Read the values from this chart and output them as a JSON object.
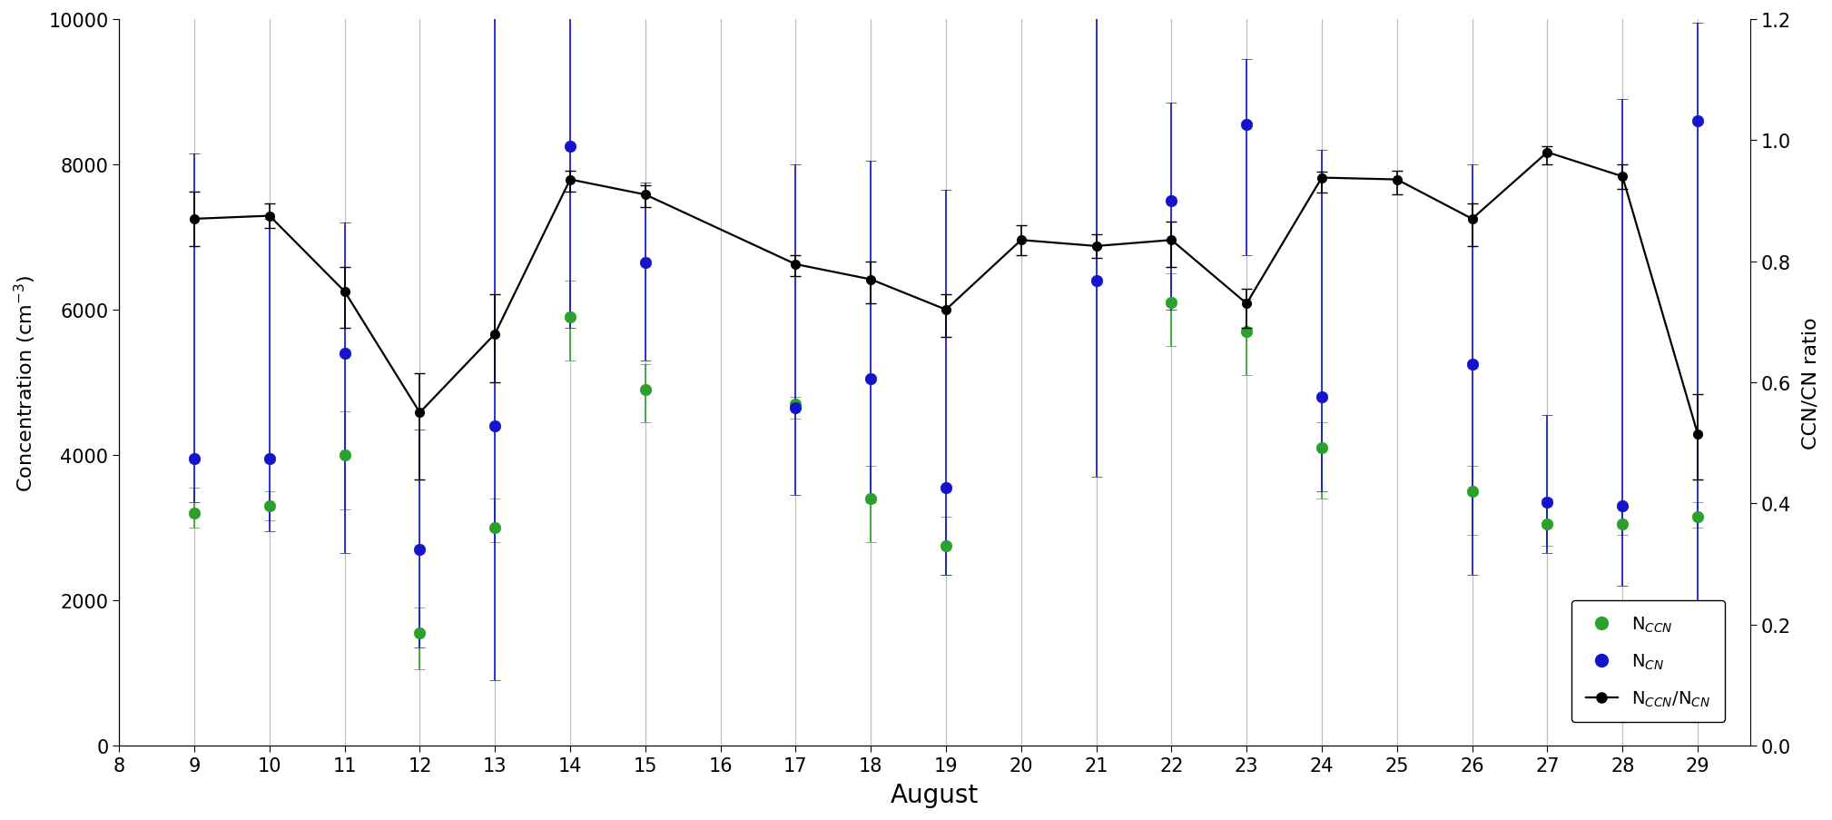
{
  "days": [
    9,
    10,
    11,
    12,
    13,
    14,
    15,
    16,
    17,
    18,
    19,
    20,
    21,
    22,
    23,
    24,
    25,
    26,
    27,
    28,
    29
  ],
  "nccn_mean": [
    3200,
    3300,
    4000,
    1550,
    3000,
    5900,
    4900,
    null,
    4700,
    3400,
    2750,
    null,
    null,
    6100,
    5700,
    4100,
    null,
    3500,
    3050,
    3050,
    3150
  ],
  "nccn_err_low": [
    200,
    200,
    750,
    500,
    200,
    600,
    450,
    null,
    200,
    600,
    400,
    null,
    null,
    600,
    600,
    700,
    null,
    600,
    300,
    150,
    150
  ],
  "nccn_err_high": [
    350,
    200,
    600,
    350,
    400,
    500,
    350,
    null,
    100,
    450,
    400,
    null,
    null,
    400,
    450,
    350,
    null,
    350,
    350,
    250,
    200
  ],
  "ncn_mean": [
    3950,
    3950,
    5400,
    2700,
    4400,
    8250,
    6650,
    null,
    4650,
    5050,
    3550,
    null,
    6400,
    7500,
    8550,
    4800,
    null,
    5250,
    3350,
    3300,
    8600
  ],
  "ncn_err_low": [
    600,
    1000,
    2750,
    1350,
    3500,
    2500,
    1350,
    null,
    1200,
    1700,
    1200,
    null,
    2700,
    1500,
    1800,
    1300,
    null,
    2900,
    700,
    1100,
    7750
  ],
  "ncn_err_high": [
    4200,
    3300,
    1800,
    1650,
    5800,
    1900,
    1100,
    null,
    3350,
    3000,
    4100,
    null,
    3700,
    1350,
    900,
    3400,
    null,
    2750,
    1200,
    5600,
    1350
  ],
  "ratio_mean": [
    0.87,
    0.875,
    0.75,
    0.55,
    0.68,
    0.935,
    0.91,
    null,
    0.795,
    0.77,
    0.72,
    0.835,
    0.825,
    0.835,
    0.73,
    0.938,
    0.935,
    0.87,
    0.98,
    0.94,
    0.515
  ],
  "ratio_err_low": [
    0.045,
    0.02,
    0.06,
    0.11,
    0.08,
    0.02,
    0.02,
    null,
    0.02,
    0.04,
    0.045,
    0.025,
    0.02,
    0.045,
    0.04,
    0.025,
    0.025,
    0.045,
    0.02,
    0.02,
    0.075
  ],
  "ratio_err_high": [
    0.045,
    0.02,
    0.04,
    0.065,
    0.065,
    0.015,
    0.015,
    null,
    0.015,
    0.03,
    0.025,
    0.025,
    0.02,
    0.03,
    0.025,
    0.01,
    0.015,
    0.025,
    0.01,
    0.02,
    0.065
  ],
  "nccn_color": "#2ca02c",
  "ncn_color": "#1414cc",
  "ratio_color": "#000000",
  "grid_color": "#c0c0c0",
  "xlim": [
    8.3,
    29.7
  ],
  "ylim_left": [
    0,
    10000
  ],
  "ylim_right": [
    0.0,
    1.2
  ],
  "yticks_left": [
    0,
    2000,
    4000,
    6000,
    8000,
    10000
  ],
  "yticks_right": [
    0.0,
    0.2,
    0.4,
    0.6,
    0.8,
    1.0,
    1.2
  ],
  "xticks": [
    8,
    9,
    10,
    11,
    12,
    13,
    14,
    15,
    16,
    17,
    18,
    19,
    20,
    21,
    22,
    23,
    24,
    25,
    26,
    27,
    28,
    29
  ],
  "xlabel": "August",
  "ylabel_left": "Concentration (cm$^{-3}$)",
  "ylabel_right": "CCN/CN ratio",
  "legend_nccn": "N$_{CCN}$",
  "legend_ncn": "N$_{CN}$",
  "legend_ratio": "N$_{CCN}$/N$_{CN}$",
  "figsize": [
    20.18,
    9.04
  ],
  "dpi": 100
}
